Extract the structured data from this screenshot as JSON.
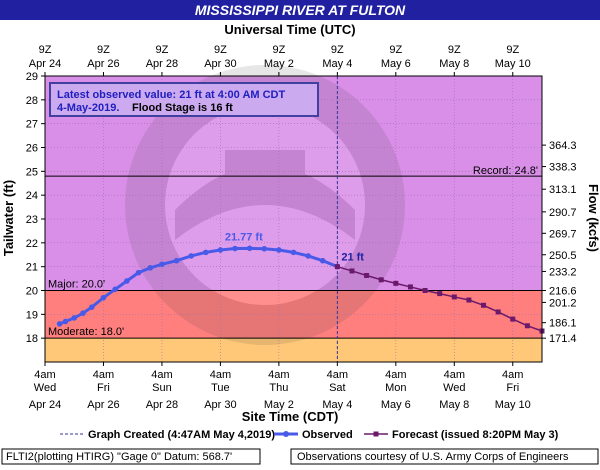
{
  "header": {
    "title": "MISSISSIPPI RIVER AT FULTON",
    "top_axis_title": "Universal Time (UTC)",
    "bottom_axis_title": "Site Time (CDT)"
  },
  "infobox": {
    "line1": "Latest observed value: 21 ft at 4:00 AM CDT",
    "line2_date": "4-May-2019.",
    "line2_flood": "Flood Stage is 16 ft"
  },
  "legend": {
    "created": "Graph Created (4:47AM May 4,2019)",
    "observed": "Observed",
    "forecast": "Forecast (issued 8:20PM May 3)"
  },
  "footer": {
    "left": "FLTI2(plotting HTIRG) \"Gage 0\" Datum: 568.7'",
    "right": "Observations courtesy of U.S. Army Corps of Engineers"
  },
  "colors": {
    "title_bar": "#2020a0",
    "plot_bg": "#d98fe8",
    "major_band": "#ff7f7f",
    "moderate_band": "#ffc878",
    "observed": "#4a5ae8",
    "forecast": "#6b1a6b",
    "infobox_bg": "#ccaaf0",
    "infobox_border": "#4040a0",
    "infobox_text": "#2020c0"
  },
  "chart_data": {
    "type": "line",
    "xlabel": "Site Time (CDT)",
    "ylabel": "Tailwater (ft)",
    "y2label": "Flow (kcfs)",
    "ylim": [
      17,
      29
    ],
    "x_start": "Apr 24 4am",
    "x_end": "May 11 4am",
    "x_ticks_bottom": [
      {
        "day": 0,
        "line1": "4am",
        "line2": "Wed",
        "line3": "Apr 24"
      },
      {
        "day": 2,
        "line1": "4am",
        "line2": "Fri",
        "line3": "Apr 26"
      },
      {
        "day": 4,
        "line1": "4am",
        "line2": "Sun",
        "line3": "Apr 28"
      },
      {
        "day": 6,
        "line1": "4am",
        "line2": "Tue",
        "line3": "Apr 30"
      },
      {
        "day": 8,
        "line1": "4am",
        "line2": "Thu",
        "line3": "May 2"
      },
      {
        "day": 10,
        "line1": "4am",
        "line2": "Sat",
        "line3": "May 4"
      },
      {
        "day": 12,
        "line1": "4am",
        "line2": "Mon",
        "line3": "May 6"
      },
      {
        "day": 14,
        "line1": "4am",
        "line2": "Wed",
        "line3": "May 8"
      },
      {
        "day": 16,
        "line1": "4am",
        "line2": "Fri",
        "line3": "May 10"
      }
    ],
    "x_ticks_top": [
      {
        "day": 0,
        "line1": "9Z",
        "line2": "Apr 24"
      },
      {
        "day": 2,
        "line1": "9Z",
        "line2": "Apr 26"
      },
      {
        "day": 4,
        "line1": "9Z",
        "line2": "Apr 28"
      },
      {
        "day": 6,
        "line1": "9Z",
        "line2": "Apr 30"
      },
      {
        "day": 8,
        "line1": "9Z",
        "line2": "May  2"
      },
      {
        "day": 10,
        "line1": "9Z",
        "line2": "May  4"
      },
      {
        "day": 12,
        "line1": "9Z",
        "line2": "May  6"
      },
      {
        "day": 14,
        "line1": "9Z",
        "line2": "May  8"
      },
      {
        "day": 16,
        "line1": "9Z",
        "line2": "May 10"
      }
    ],
    "y_ticks": [
      18,
      19,
      20,
      21,
      22,
      23,
      24,
      25,
      26,
      27,
      28,
      29
    ],
    "flow_ticks": [
      {
        "stage": 18.0,
        "label": "171.4"
      },
      {
        "stage": 18.65,
        "label": "186.1"
      },
      {
        "stage": 19.5,
        "label": "201.2"
      },
      {
        "stage": 20.0,
        "label": "216.6"
      },
      {
        "stage": 20.8,
        "label": "233.2"
      },
      {
        "stage": 21.5,
        "label": "250.5"
      },
      {
        "stage": 22.4,
        "label": "269.7"
      },
      {
        "stage": 23.3,
        "label": "290.7"
      },
      {
        "stage": 24.25,
        "label": "313.1"
      },
      {
        "stage": 25.2,
        "label": "338.3"
      },
      {
        "stage": 26.1,
        "label": "364.3"
      }
    ],
    "thresholds": {
      "record": {
        "value": 24.8,
        "label": "Record: 24.8'"
      },
      "major": {
        "value": 20.0,
        "label": "Major: 20.0'"
      },
      "moderate": {
        "value": 18.0,
        "label": "Moderate: 18.0'"
      }
    },
    "series": [
      {
        "name": "Observed",
        "points": [
          [
            0.5,
            18.6
          ],
          [
            0.7,
            18.7
          ],
          [
            1.0,
            18.85
          ],
          [
            1.3,
            19.05
          ],
          [
            1.6,
            19.3
          ],
          [
            2.0,
            19.7
          ],
          [
            2.4,
            20.05
          ],
          [
            2.8,
            20.4
          ],
          [
            3.2,
            20.75
          ],
          [
            3.6,
            20.95
          ],
          [
            4.0,
            21.1
          ],
          [
            4.5,
            21.25
          ],
          [
            5.0,
            21.45
          ],
          [
            5.5,
            21.6
          ],
          [
            6.0,
            21.7
          ],
          [
            6.5,
            21.76
          ],
          [
            7.0,
            21.77
          ],
          [
            7.5,
            21.75
          ],
          [
            8.0,
            21.7
          ],
          [
            8.5,
            21.6
          ],
          [
            9.0,
            21.45
          ],
          [
            9.5,
            21.25
          ],
          [
            10.0,
            21.0
          ]
        ],
        "peak_label": "21.77 ft",
        "peak_day": 6.8,
        "peak_value": 21.77,
        "last_label": "21 ft"
      },
      {
        "name": "Forecast",
        "points": [
          [
            10.0,
            21.0
          ],
          [
            10.5,
            20.82
          ],
          [
            11.0,
            20.63
          ],
          [
            11.5,
            20.45
          ],
          [
            12.0,
            20.3
          ],
          [
            12.5,
            20.15
          ],
          [
            13.0,
            20.0
          ],
          [
            13.5,
            19.87
          ],
          [
            14.0,
            19.73
          ],
          [
            14.5,
            19.6
          ],
          [
            15.0,
            19.38
          ],
          [
            15.5,
            19.1
          ],
          [
            16.0,
            18.8
          ],
          [
            16.5,
            18.52
          ],
          [
            17.0,
            18.3
          ]
        ]
      }
    ],
    "now_day": 10.0
  }
}
